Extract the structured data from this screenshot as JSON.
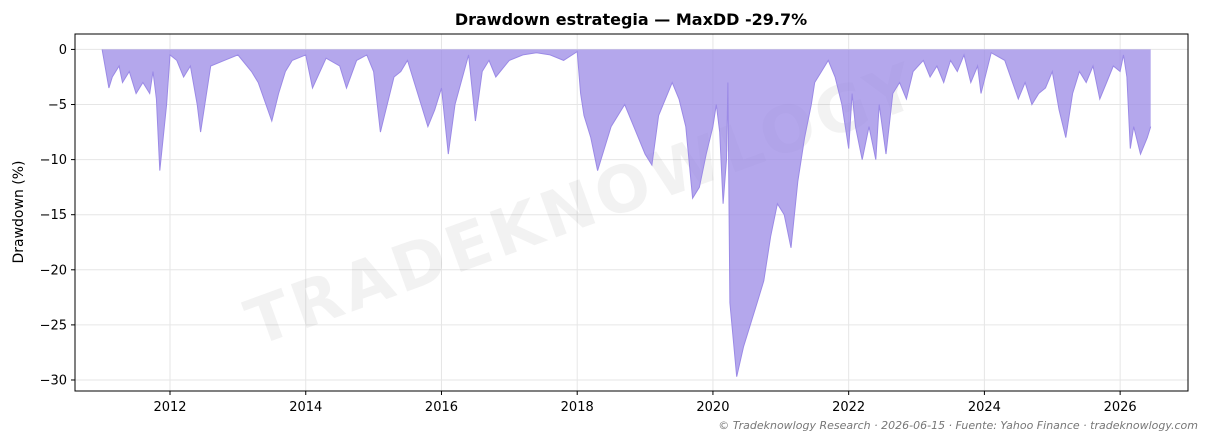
{
  "chart_data": {
    "type": "area",
    "title": "Drawdown estrategia — MaxDD -29.7%",
    "xlabel": "",
    "ylabel": "Drawdown (%)",
    "xlim": [
      2010.6,
      2027.0
    ],
    "ylim": [
      -31,
      1.4
    ],
    "xticks": [
      2012,
      2014,
      2016,
      2018,
      2020,
      2022,
      2024,
      2026
    ],
    "xtick_labels": [
      "2012",
      "2014",
      "2016",
      "2018",
      "2020",
      "2022",
      "2024",
      "2026"
    ],
    "yticks": [
      0,
      -5,
      -10,
      -15,
      -20,
      -25,
      -30
    ],
    "ytick_labels": [
      "0",
      "−5",
      "−10",
      "−15",
      "−20",
      "−25",
      "−30"
    ],
    "grid": true,
    "series": [
      {
        "color": "#9b8ae6",
        "x": [
          2011.0,
          2011.1,
          2011.15,
          2011.25,
          2011.3,
          2011.4,
          2011.5,
          2011.6,
          2011.7,
          2011.75,
          2011.8,
          2011.85,
          2011.9,
          2011.95,
          2012.0,
          2012.1,
          2012.2,
          2012.3,
          2012.4,
          2012.45,
          2012.6,
          2012.8,
          2013.0,
          2013.2,
          2013.3,
          2013.5,
          2013.6,
          2013.7,
          2013.8,
          2014.0,
          2014.1,
          2014.3,
          2014.5,
          2014.6,
          2014.75,
          2014.9,
          2015.0,
          2015.1,
          2015.2,
          2015.3,
          2015.4,
          2015.5,
          2015.6,
          2015.7,
          2015.8,
          2015.9,
          2016.0,
          2016.1,
          2016.2,
          2016.4,
          2016.5,
          2016.6,
          2016.7,
          2016.8,
          2017.0,
          2017.2,
          2017.4,
          2017.6,
          2017.8,
          2018.0,
          2018.05,
          2018.1,
          2018.2,
          2018.3,
          2018.5,
          2018.7,
          2018.8,
          2018.9,
          2019.0,
          2019.1,
          2019.2,
          2019.4,
          2019.5,
          2019.6,
          2019.7,
          2019.8,
          2019.9,
          2020.0,
          2020.05,
          2020.1,
          2020.15,
          2020.2,
          2020.22,
          2020.25,
          2020.35,
          2020.45,
          2020.55,
          2020.65,
          2020.75,
          2020.85,
          2020.95,
          2021.05,
          2021.15,
          2021.25,
          2021.35,
          2021.45,
          2021.5,
          2021.6,
          2021.7,
          2021.8,
          2021.9,
          2022.0,
          2022.05,
          2022.1,
          2022.2,
          2022.3,
          2022.4,
          2022.45,
          2022.55,
          2022.65,
          2022.75,
          2022.85,
          2022.95,
          2023.1,
          2023.2,
          2023.3,
          2023.4,
          2023.5,
          2023.6,
          2023.7,
          2023.8,
          2023.9,
          2023.95,
          2024.1,
          2024.3,
          2024.5,
          2024.6,
          2024.7,
          2024.8,
          2024.9,
          2025.0,
          2025.1,
          2025.2,
          2025.3,
          2025.4,
          2025.5,
          2025.6,
          2025.7,
          2025.8,
          2025.9,
          2026.0,
          2026.05,
          2026.1,
          2026.15,
          2026.2,
          2026.3,
          2026.4,
          2026.45
        ],
        "values": [
          0.0,
          -3.5,
          -2.5,
          -1.5,
          -3.0,
          -2.0,
          -4.0,
          -3.0,
          -4.0,
          -2.0,
          -4.5,
          -11.0,
          -8.0,
          -5.0,
          -0.5,
          -1.0,
          -2.5,
          -1.5,
          -5.0,
          -7.5,
          -1.5,
          -1.0,
          -0.5,
          -2.0,
          -3.0,
          -6.5,
          -4.0,
          -2.0,
          -1.0,
          -0.5,
          -3.5,
          -0.8,
          -1.5,
          -3.5,
          -1.0,
          -0.5,
          -2.0,
          -7.5,
          -5.0,
          -2.5,
          -2.0,
          -1.0,
          -3.0,
          -5.0,
          -7.0,
          -5.5,
          -3.5,
          -9.5,
          -5.0,
          -0.5,
          -6.5,
          -2.0,
          -1.0,
          -2.5,
          -1.0,
          -0.5,
          -0.3,
          -0.5,
          -1.0,
          -0.2,
          -4.0,
          -6.0,
          -8.0,
          -11.0,
          -7.0,
          -5.0,
          -6.5,
          -8.0,
          -9.5,
          -10.5,
          -6.0,
          -3.0,
          -4.5,
          -7.0,
          -13.5,
          -12.5,
          -9.5,
          -7.0,
          -5.0,
          -7.5,
          -14.0,
          -10.0,
          -3.0,
          -23.0,
          -29.7,
          -27.0,
          -25.0,
          -23.0,
          -21.0,
          -17.0,
          -14.0,
          -15.0,
          -18.0,
          -12.0,
          -8.0,
          -5.0,
          -3.0,
          -2.0,
          -1.0,
          -2.5,
          -5.0,
          -9.0,
          -4.0,
          -7.0,
          -10.0,
          -7.0,
          -10.0,
          -5.0,
          -9.5,
          -4.0,
          -3.0,
          -4.5,
          -2.0,
          -1.0,
          -2.5,
          -1.5,
          -3.0,
          -1.0,
          -2.0,
          -0.5,
          -3.0,
          -1.5,
          -4.0,
          -0.3,
          -1.0,
          -4.5,
          -3.0,
          -5.0,
          -4.0,
          -3.5,
          -2.0,
          -5.5,
          -8.0,
          -4.0,
          -2.0,
          -3.0,
          -1.5,
          -4.5,
          -3.0,
          -1.5,
          -2.0,
          -0.5,
          -2.5,
          -9.0,
          -7.0,
          -9.5,
          -8.0,
          -7.0
        ]
      }
    ]
  },
  "watermark": "TRADEKNOWLOGY",
  "footer": "© Tradeknowlogy Research   ·   2026-06-15   ·   Fuente: Yahoo Finance   ·   tradeknowlogy.com"
}
